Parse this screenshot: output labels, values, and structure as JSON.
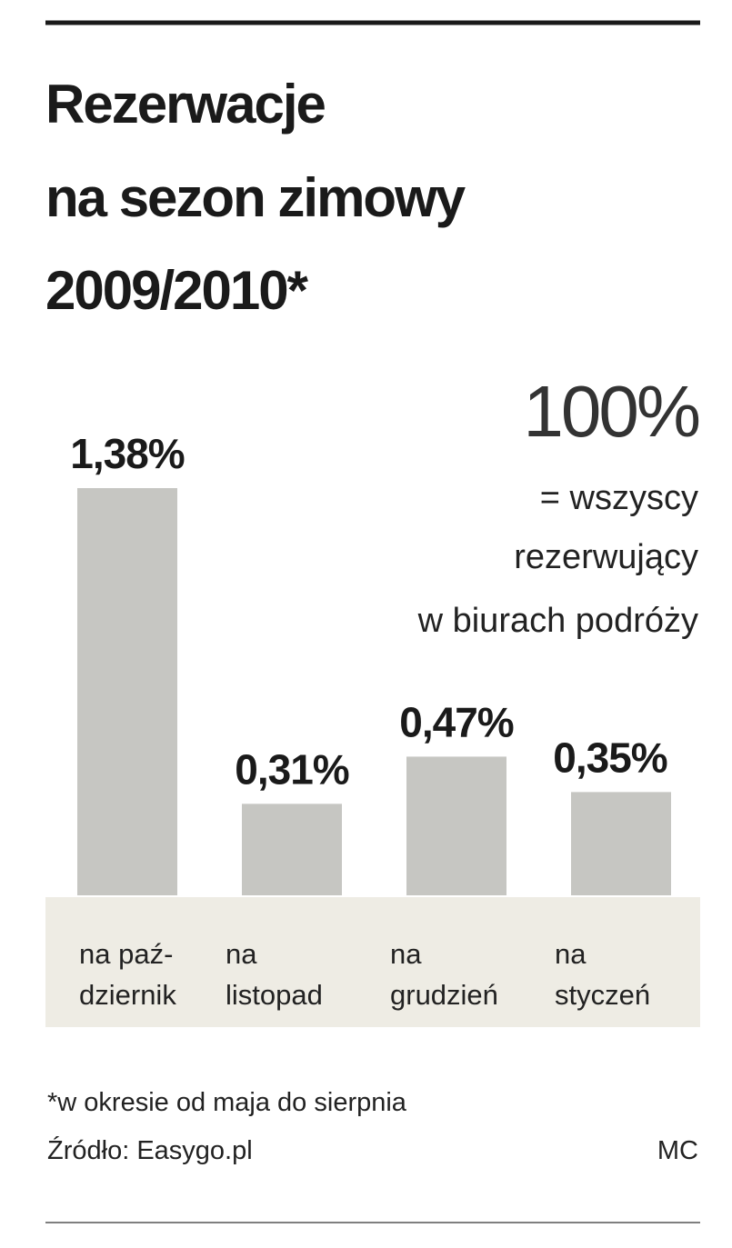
{
  "chart_data": {
    "type": "bar",
    "title": [
      "Rezerwacje",
      "na sezon zimowy",
      "2009/2010*"
    ],
    "annotation": [
      "100%",
      "= wszyscy",
      "rezerwujący",
      "w biurach podróży"
    ],
    "categories": [
      [
        "na paź-",
        "dziernik"
      ],
      [
        "na",
        "listopad"
      ],
      [
        "na",
        "grudzień"
      ],
      [
        "na",
        "styczeń"
      ]
    ],
    "values": [
      1.38,
      0.31,
      0.47,
      0.35
    ],
    "value_labels": [
      "1,38%",
      "0,31%",
      "0,47%",
      "0,35%"
    ],
    "color": "#c6c6c2",
    "footnote": "*w okresie od maja do sierpnia",
    "source": "Źródło: Easygo.pl",
    "credit": "MC"
  }
}
